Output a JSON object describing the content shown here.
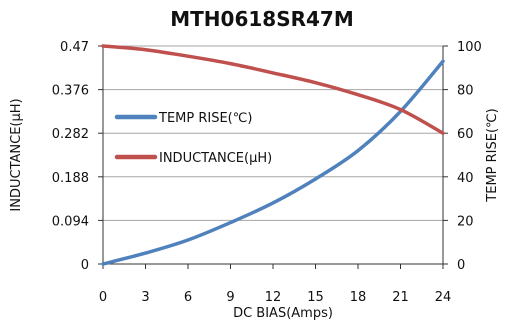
{
  "chart_data": {
    "type": "line",
    "title": "MTH0618SR47M",
    "xlabel": "DC  BIAS(Amps)",
    "ylabel_left": "INDUCTANCE(μH)",
    "ylabel_right": "TEMP RISE(℃)",
    "x_ticks": [
      "0",
      "3",
      "6",
      "9",
      "12",
      "15",
      "18",
      "21",
      "24"
    ],
    "y_left_ticks": [
      "0",
      "0.094",
      "0.188",
      "0.282",
      "0.376",
      "0.47"
    ],
    "y_right_ticks": [
      "0",
      "20",
      "40",
      "60",
      "80",
      "100"
    ],
    "xlim": [
      0,
      24
    ],
    "ylim_left": [
      0,
      0.47
    ],
    "ylim_right": [
      0,
      100
    ],
    "grid": true,
    "legend": "center-left",
    "series": [
      {
        "name": "TEMP RISE(℃)",
        "axis": "right",
        "color": "#4f81bd",
        "x": [
          0,
          3,
          6,
          9,
          12,
          15,
          18,
          21,
          24
        ],
        "values": [
          0,
          5,
          11,
          19,
          28,
          39,
          52,
          70,
          93
        ]
      },
      {
        "name": "INDUCTANCE(μH)",
        "axis": "left",
        "color": "#c0504d",
        "x": [
          0,
          3,
          6,
          9,
          12,
          15,
          18,
          21,
          24
        ],
        "values": [
          0.47,
          0.462,
          0.448,
          0.432,
          0.412,
          0.391,
          0.365,
          0.333,
          0.282
        ]
      }
    ]
  }
}
